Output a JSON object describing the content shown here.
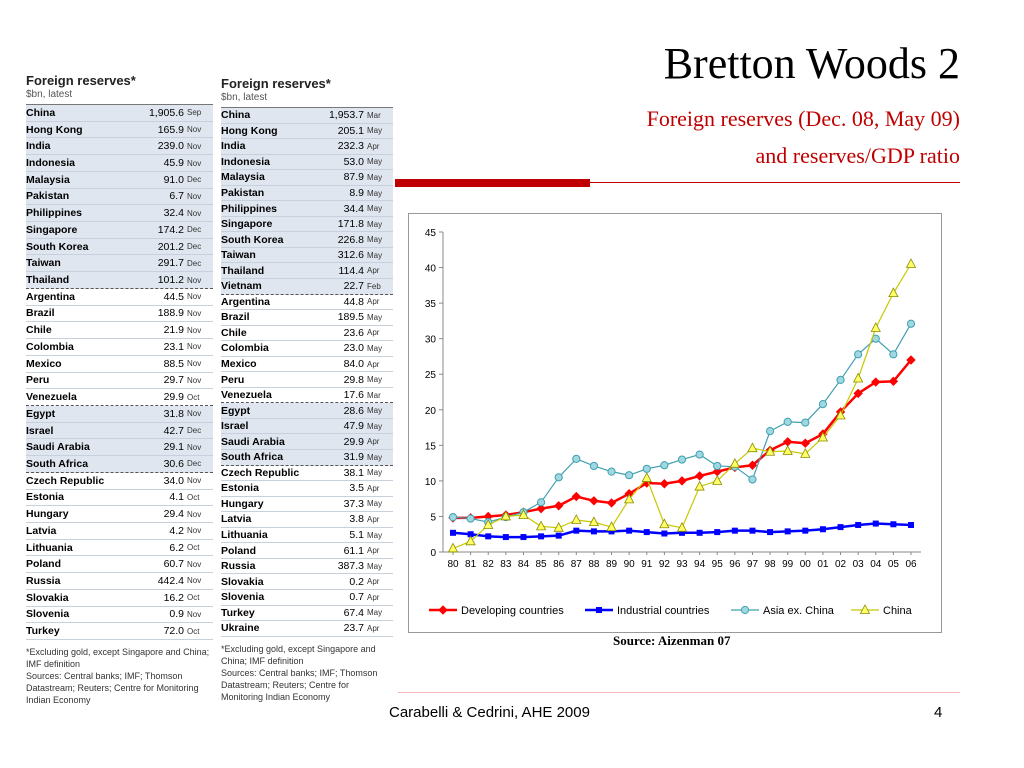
{
  "slide": {
    "title": "Bretton Woods 2",
    "subtitle_line1": "Foreign reserves (Dec. 08, May 09)",
    "subtitle_line2": "and reserves/GDP ratio",
    "source": "Source: Aizenman 07",
    "footer": "Carabelli & Cedrini, AHE 2009",
    "page_number": "4",
    "accent_color": "#c00000"
  },
  "table_dec08": {
    "title": "Foreign reserves*",
    "subtitle": "$bn, latest",
    "rows": [
      {
        "country": "China",
        "value": "1,905.6",
        "month": "Sep"
      },
      {
        "country": "Hong Kong",
        "value": "165.9",
        "month": "Nov"
      },
      {
        "country": "India",
        "value": "239.0",
        "month": "Nov"
      },
      {
        "country": "Indonesia",
        "value": "45.9",
        "month": "Nov"
      },
      {
        "country": "Malaysia",
        "value": "91.0",
        "month": "Dec"
      },
      {
        "country": "Pakistan",
        "value": "6.7",
        "month": "Nov"
      },
      {
        "country": "Philippines",
        "value": "32.4",
        "month": "Nov"
      },
      {
        "country": "Singapore",
        "value": "174.2",
        "month": "Dec"
      },
      {
        "country": "South Korea",
        "value": "201.2",
        "month": "Dec"
      },
      {
        "country": "Taiwan",
        "value": "291.7",
        "month": "Dec"
      },
      {
        "country": "Thailand",
        "value": "101.2",
        "month": "Nov"
      },
      {
        "country": "Argentina",
        "value": "44.5",
        "month": "Nov"
      },
      {
        "country": "Brazil",
        "value": "188.9",
        "month": "Nov"
      },
      {
        "country": "Chile",
        "value": "21.9",
        "month": "Nov"
      },
      {
        "country": "Colombia",
        "value": "23.1",
        "month": "Nov"
      },
      {
        "country": "Mexico",
        "value": "88.5",
        "month": "Nov"
      },
      {
        "country": "Peru",
        "value": "29.7",
        "month": "Nov"
      },
      {
        "country": "Venezuela",
        "value": "29.9",
        "month": "Oct"
      },
      {
        "country": "Egypt",
        "value": "31.8",
        "month": "Nov"
      },
      {
        "country": "Israel",
        "value": "42.7",
        "month": "Dec"
      },
      {
        "country": "Saudi Arabia",
        "value": "29.1",
        "month": "Nov"
      },
      {
        "country": "South Africa",
        "value": "30.6",
        "month": "Dec"
      },
      {
        "country": "Czech Republic",
        "value": "34.0",
        "month": "Nov"
      },
      {
        "country": "Estonia",
        "value": "4.1",
        "month": "Oct"
      },
      {
        "country": "Hungary",
        "value": "29.4",
        "month": "Nov"
      },
      {
        "country": "Latvia",
        "value": "4.2",
        "month": "Nov"
      },
      {
        "country": "Lithuania",
        "value": "6.2",
        "month": "Oct"
      },
      {
        "country": "Poland",
        "value": "60.7",
        "month": "Nov"
      },
      {
        "country": "Russia",
        "value": "442.4",
        "month": "Nov"
      },
      {
        "country": "Slovakia",
        "value": "16.2",
        "month": "Oct"
      },
      {
        "country": "Slovenia",
        "value": "0.9",
        "month": "Nov"
      },
      {
        "country": "Turkey",
        "value": "72.0",
        "month": "Oct"
      }
    ],
    "note1": "*Excluding gold, except Singapore and China; IMF definition",
    "note2": "Sources: Central banks; IMF; Thomson Datastream; Reuters; Centre for Monitoring Indian Economy"
  },
  "table_may09": {
    "title": "Foreign reserves*",
    "subtitle": "$bn, latest",
    "rows": [
      {
        "country": "China",
        "value": "1,953.7",
        "month": "Mar"
      },
      {
        "country": "Hong Kong",
        "value": "205.1",
        "month": "May"
      },
      {
        "country": "India",
        "value": "232.3",
        "month": "Apr"
      },
      {
        "country": "Indonesia",
        "value": "53.0",
        "month": "May"
      },
      {
        "country": "Malaysia",
        "value": "87.9",
        "month": "May"
      },
      {
        "country": "Pakistan",
        "value": "8.9",
        "month": "May"
      },
      {
        "country": "Philippines",
        "value": "34.4",
        "month": "May"
      },
      {
        "country": "Singapore",
        "value": "171.8",
        "month": "May"
      },
      {
        "country": "South Korea",
        "value": "226.8",
        "month": "May"
      },
      {
        "country": "Taiwan",
        "value": "312.6",
        "month": "May"
      },
      {
        "country": "Thailand",
        "value": "114.4",
        "month": "Apr"
      },
      {
        "country": "Vietnam",
        "value": "22.7",
        "month": "Feb"
      },
      {
        "country": "Argentina",
        "value": "44.8",
        "month": "Apr"
      },
      {
        "country": "Brazil",
        "value": "189.5",
        "month": "May"
      },
      {
        "country": "Chile",
        "value": "23.6",
        "month": "Apr"
      },
      {
        "country": "Colombia",
        "value": "23.0",
        "month": "May"
      },
      {
        "country": "Mexico",
        "value": "84.0",
        "month": "Apr"
      },
      {
        "country": "Peru",
        "value": "29.8",
        "month": "May"
      },
      {
        "country": "Venezuela",
        "value": "17.6",
        "month": "Mar"
      },
      {
        "country": "Egypt",
        "value": "28.6",
        "month": "May"
      },
      {
        "country": "Israel",
        "value": "47.9",
        "month": "May"
      },
      {
        "country": "Saudi Arabia",
        "value": "29.9",
        "month": "Apr"
      },
      {
        "country": "South Africa",
        "value": "31.9",
        "month": "May"
      },
      {
        "country": "Czech Republic",
        "value": "38.1",
        "month": "May"
      },
      {
        "country": "Estonia",
        "value": "3.5",
        "month": "Apr"
      },
      {
        "country": "Hungary",
        "value": "37.3",
        "month": "May"
      },
      {
        "country": "Latvia",
        "value": "3.8",
        "month": "Apr"
      },
      {
        "country": "Lithuania",
        "value": "5.1",
        "month": "May"
      },
      {
        "country": "Poland",
        "value": "61.1",
        "month": "Apr"
      },
      {
        "country": "Russia",
        "value": "387.3",
        "month": "May"
      },
      {
        "country": "Slovakia",
        "value": "0.2",
        "month": "Apr"
      },
      {
        "country": "Slovenia",
        "value": "0.7",
        "month": "Apr"
      },
      {
        "country": "Turkey",
        "value": "67.4",
        "month": "May"
      },
      {
        "country": "Ukraine",
        "value": "23.7",
        "month": "Apr"
      }
    ],
    "note1": "*Excluding gold, except Singapore and China; IMF definition",
    "note2": "Sources: Central banks; IMF; Thomson Datastream; Reuters; Centre for Monitoring Indian Economy"
  },
  "chart_data": {
    "type": "line",
    "title": "",
    "xlabel": "",
    "ylabel": "",
    "ylim": [
      0,
      45
    ],
    "yticks": [
      0,
      5,
      10,
      15,
      20,
      25,
      30,
      35,
      40,
      45
    ],
    "categories": [
      "80",
      "81",
      "82",
      "83",
      "84",
      "85",
      "86",
      "87",
      "88",
      "89",
      "90",
      "91",
      "92",
      "93",
      "94",
      "95",
      "96",
      "97",
      "98",
      "99",
      "00",
      "01",
      "02",
      "03",
      "04",
      "05",
      "06"
    ],
    "legend_position": "bottom",
    "grid": false,
    "series": [
      {
        "name": "Developing countries",
        "color": "#ff0000",
        "marker": "diamond",
        "values": [
          4.8,
          4.8,
          5.0,
          5.2,
          5.6,
          6.1,
          6.5,
          7.8,
          7.2,
          6.9,
          8.2,
          9.7,
          9.6,
          10.0,
          10.7,
          11.3,
          11.9,
          12.2,
          14.3,
          15.5,
          15.3,
          16.6,
          19.7,
          22.3,
          23.9,
          24.0,
          27.0
        ]
      },
      {
        "name": "Industrial countries",
        "color": "#0000ff",
        "marker": "square",
        "values": [
          2.7,
          2.5,
          2.2,
          2.1,
          2.1,
          2.2,
          2.3,
          3.0,
          2.9,
          2.9,
          3.0,
          2.8,
          2.6,
          2.7,
          2.7,
          2.8,
          3.0,
          3.0,
          2.8,
          2.9,
          3.0,
          3.2,
          3.5,
          3.8,
          4.0,
          3.9,
          3.8
        ]
      },
      {
        "name": "Asia ex. China",
        "color": "#40a0b0",
        "marker": "circle",
        "values": [
          4.9,
          4.7,
          4.2,
          4.9,
          5.6,
          7.0,
          10.5,
          13.1,
          12.1,
          11.3,
          10.8,
          11.7,
          12.2,
          13.0,
          13.7,
          12.1,
          12.0,
          10.2,
          17.0,
          18.3,
          18.2,
          20.8,
          24.2,
          27.8,
          30.0,
          27.8,
          32.1
        ]
      },
      {
        "name": "China",
        "color": "#c8c800",
        "marker": "triangle",
        "values": [
          0.5,
          1.5,
          3.8,
          5.0,
          5.2,
          3.6,
          3.4,
          4.5,
          4.2,
          3.5,
          7.4,
          10.4,
          3.9,
          3.4,
          9.2,
          10.0,
          12.4,
          14.6,
          14.1,
          14.2,
          13.8,
          16.1,
          19.2,
          24.4,
          31.5,
          36.4,
          40.5
        ]
      }
    ]
  }
}
